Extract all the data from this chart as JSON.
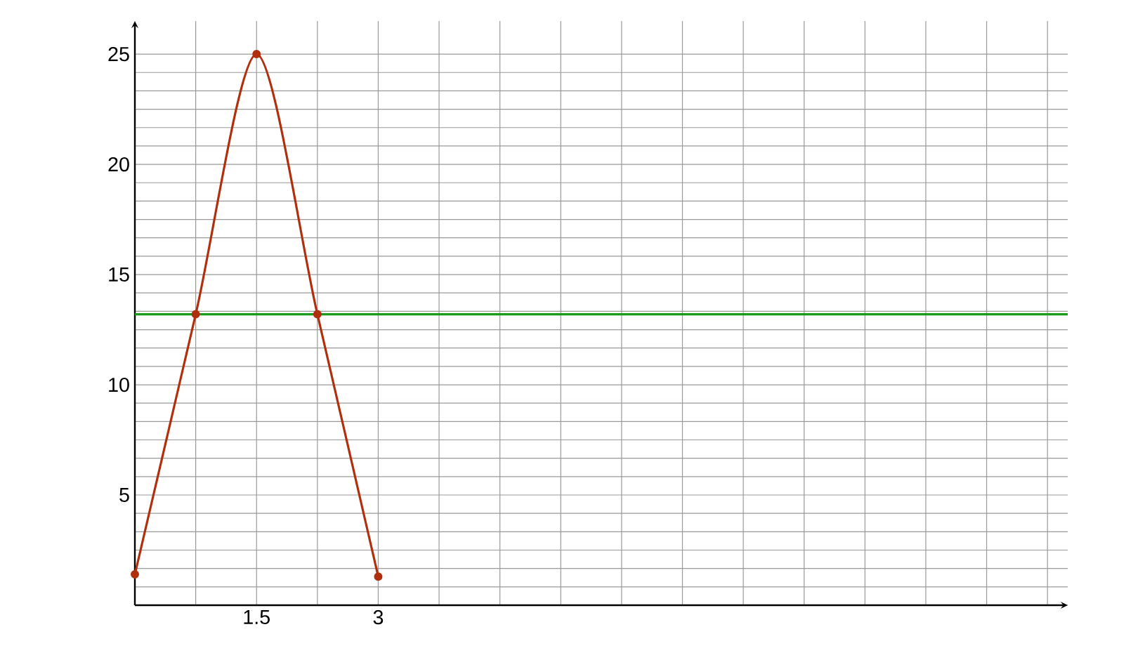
{
  "chart_data": {
    "type": "line",
    "x": [
      0,
      0.75,
      1.5,
      2.25,
      3
    ],
    "series": [
      {
        "color": "#b0300e",
        "values": [
          1.4,
          13.2,
          25,
          13.2,
          1.3
        ]
      }
    ],
    "marker": "circle",
    "grid": true,
    "xlim": [
      0,
      11.5
    ],
    "ylim": [
      0,
      26.5
    ],
    "xticks": [
      {
        "value": 0.75,
        "label": null
      },
      1.5,
      {
        "value": 2.25,
        "label": null
      },
      3,
      {
        "value": 3.75,
        "label": null
      },
      {
        "value": 4.5,
        "label": null
      },
      {
        "value": 5.25,
        "label": null
      },
      {
        "value": 6,
        "label": null
      },
      {
        "value": 6.75,
        "label": null
      },
      {
        "value": 7.5,
        "label": null
      },
      {
        "value": 8.25,
        "label": null
      },
      {
        "value": 9,
        "label": null
      },
      {
        "value": 9.75,
        "label": null
      },
      {
        "value": 10.5,
        "label": null
      },
      {
        "value": 11.25,
        "label": null
      }
    ],
    "yticks": [
      {
        "value": 0,
        "label": null
      },
      5,
      10,
      15,
      20,
      25
    ],
    "ref_lines": [
      {
        "axis": "y",
        "value": 13.2,
        "color": "#1a9a1a"
      }
    ]
  }
}
